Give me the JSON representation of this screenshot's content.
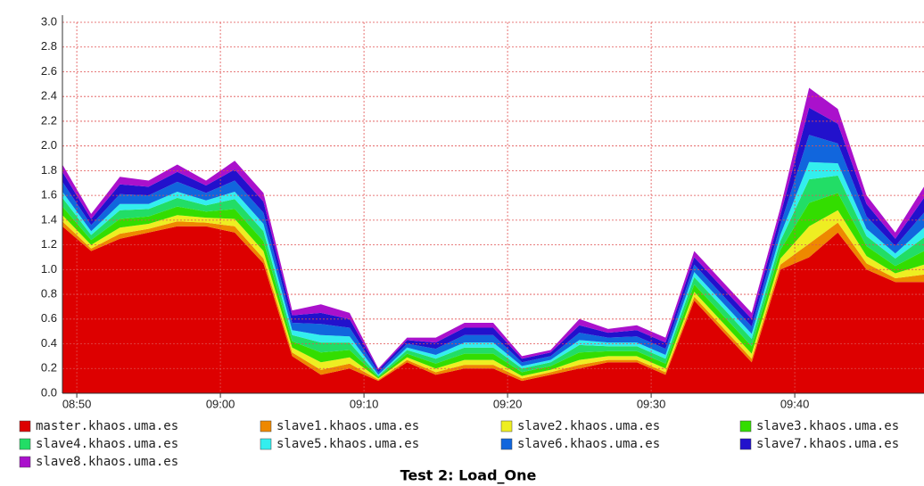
{
  "chart_data": {
    "type": "stacked_area",
    "caption": "Test 2: Load_One",
    "x": [
      "08:49",
      "08:51",
      "08:53",
      "08:55",
      "08:57",
      "08:59",
      "09:01",
      "09:03",
      "09:05",
      "09:07",
      "09:09",
      "09:11",
      "09:13",
      "09:15",
      "09:17",
      "09:19",
      "09:21",
      "09:23",
      "09:25",
      "09:27",
      "09:29",
      "09:31",
      "09:33",
      "09:35",
      "09:37",
      "09:39",
      "09:41",
      "09:43",
      "09:45",
      "09:47",
      "09:49"
    ],
    "xlim": [
      "08:49",
      "09:49"
    ],
    "xticks": [
      "08:50",
      "09:00",
      "09:10",
      "09:20",
      "09:30",
      "09:40"
    ],
    "ylim": [
      0,
      3
    ],
    "yticks": [
      {
        "value": 0,
        "label": "0.0"
      },
      0.2,
      0.4,
      0.6,
      0.8,
      {
        "value": 1,
        "label": "1.0"
      },
      1.2,
      1.4,
      1.6,
      1.8,
      {
        "value": 2,
        "label": "2.0"
      },
      2.2,
      2.4,
      2.6,
      2.8,
      {
        "value": 3,
        "label": "3.0"
      }
    ],
    "grid": true,
    "series": [
      {
        "name": "master.khaos.uma.es",
        "color": "#dd0000",
        "values": [
          1.35,
          1.15,
          1.25,
          1.3,
          1.35,
          1.35,
          1.3,
          1.05,
          0.3,
          0.15,
          0.2,
          0.1,
          0.25,
          0.15,
          0.2,
          0.2,
          0.1,
          0.15,
          0.2,
          0.25,
          0.25,
          0.15,
          0.75,
          0.5,
          0.25,
          1.0,
          1.1,
          1.3,
          1.0,
          0.9,
          0.9
        ]
      },
      {
        "name": "slave1.khaos.uma.es",
        "color": "#ee8800",
        "values": [
          0.04,
          0.02,
          0.04,
          0.03,
          0.04,
          0.03,
          0.05,
          0.04,
          0.03,
          0.04,
          0.04,
          0.01,
          0.02,
          0.02,
          0.03,
          0.03,
          0.02,
          0.02,
          0.03,
          0.02,
          0.02,
          0.02,
          0.03,
          0.03,
          0.03,
          0.04,
          0.11,
          0.08,
          0.05,
          0.03,
          0.06
        ]
      },
      {
        "name": "slave2.khaos.uma.es",
        "color": "#eeee22",
        "values": [
          0.05,
          0.03,
          0.05,
          0.04,
          0.05,
          0.04,
          0.06,
          0.06,
          0.04,
          0.06,
          0.05,
          0.01,
          0.02,
          0.03,
          0.04,
          0.04,
          0.02,
          0.02,
          0.04,
          0.03,
          0.03,
          0.03,
          0.04,
          0.04,
          0.04,
          0.05,
          0.14,
          0.1,
          0.06,
          0.04,
          0.08
        ]
      },
      {
        "name": "slave3.khaos.uma.es",
        "color": "#33dd00",
        "values": [
          0.07,
          0.04,
          0.07,
          0.06,
          0.07,
          0.05,
          0.08,
          0.08,
          0.05,
          0.08,
          0.06,
          0.01,
          0.03,
          0.04,
          0.05,
          0.05,
          0.03,
          0.03,
          0.06,
          0.04,
          0.04,
          0.04,
          0.06,
          0.06,
          0.06,
          0.07,
          0.19,
          0.14,
          0.08,
          0.06,
          0.11
        ]
      },
      {
        "name": "slave4.khaos.uma.es",
        "color": "#22dd66",
        "values": [
          0.07,
          0.04,
          0.07,
          0.06,
          0.07,
          0.05,
          0.08,
          0.08,
          0.05,
          0.08,
          0.06,
          0.01,
          0.03,
          0.04,
          0.05,
          0.05,
          0.03,
          0.03,
          0.06,
          0.04,
          0.04,
          0.04,
          0.06,
          0.06,
          0.06,
          0.07,
          0.19,
          0.14,
          0.08,
          0.06,
          0.11
        ]
      },
      {
        "name": "slave5.khaos.uma.es",
        "color": "#33eeee",
        "values": [
          0.05,
          0.03,
          0.05,
          0.04,
          0.05,
          0.04,
          0.06,
          0.06,
          0.04,
          0.06,
          0.05,
          0.01,
          0.02,
          0.03,
          0.04,
          0.04,
          0.02,
          0.02,
          0.04,
          0.03,
          0.03,
          0.03,
          0.04,
          0.04,
          0.04,
          0.05,
          0.14,
          0.1,
          0.06,
          0.04,
          0.08
        ]
      },
      {
        "name": "slave6.khaos.uma.es",
        "color": "#1166dd",
        "values": [
          0.08,
          0.05,
          0.08,
          0.07,
          0.08,
          0.06,
          0.09,
          0.09,
          0.06,
          0.09,
          0.07,
          0.02,
          0.03,
          0.05,
          0.06,
          0.06,
          0.03,
          0.03,
          0.06,
          0.04,
          0.05,
          0.05,
          0.06,
          0.06,
          0.06,
          0.08,
          0.22,
          0.16,
          0.1,
          0.06,
          0.12
        ]
      },
      {
        "name": "slave7.khaos.uma.es",
        "color": "#2211cc",
        "values": [
          0.08,
          0.05,
          0.08,
          0.07,
          0.08,
          0.06,
          0.09,
          0.09,
          0.06,
          0.09,
          0.07,
          0.02,
          0.03,
          0.05,
          0.06,
          0.06,
          0.03,
          0.03,
          0.06,
          0.04,
          0.05,
          0.05,
          0.06,
          0.06,
          0.06,
          0.08,
          0.22,
          0.16,
          0.1,
          0.06,
          0.12
        ]
      },
      {
        "name": "slave8.khaos.uma.es",
        "color": "#aa11cc",
        "values": [
          0.06,
          0.04,
          0.06,
          0.05,
          0.06,
          0.04,
          0.07,
          0.07,
          0.04,
          0.07,
          0.05,
          0.01,
          0.02,
          0.04,
          0.04,
          0.04,
          0.02,
          0.02,
          0.05,
          0.03,
          0.04,
          0.04,
          0.05,
          0.05,
          0.05,
          0.06,
          0.16,
          0.12,
          0.07,
          0.05,
          0.09
        ]
      }
    ]
  }
}
